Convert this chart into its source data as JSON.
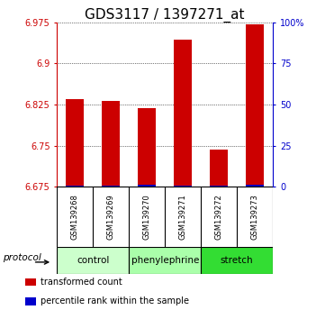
{
  "title": "GDS3117 / 1397271_at",
  "samples": [
    "GSM139268",
    "GSM139269",
    "GSM139270",
    "GSM139271",
    "GSM139272",
    "GSM139273"
  ],
  "red_values": [
    6.835,
    6.832,
    6.818,
    6.943,
    6.742,
    6.972
  ],
  "blue_values": [
    6.677,
    6.677,
    6.678,
    6.677,
    6.677,
    6.678
  ],
  "y_min": 6.675,
  "y_max": 6.975,
  "y_ticks": [
    6.675,
    6.75,
    6.825,
    6.9,
    6.975
  ],
  "y_tick_labels": [
    "6.675",
    "6.75",
    "6.825",
    "6.9",
    "6.975"
  ],
  "right_ticks": [
    0,
    25,
    50,
    75,
    100
  ],
  "right_tick_labels": [
    "0",
    "25",
    "50",
    "75",
    "100%"
  ],
  "groups": [
    {
      "label": "control",
      "start": 0,
      "end": 2,
      "color": "#ccffcc"
    },
    {
      "label": "phenylephrine",
      "start": 2,
      "end": 4,
      "color": "#aaffaa"
    },
    {
      "label": "stretch",
      "start": 4,
      "end": 6,
      "color": "#33dd33"
    }
  ],
  "protocol_label": "protocol",
  "legend_items": [
    {
      "color": "#cc0000",
      "label": "transformed count"
    },
    {
      "color": "#0000cc",
      "label": "percentile rank within the sample"
    }
  ],
  "bar_width": 0.5,
  "left_color": "#cc0000",
  "right_color": "#0000bb",
  "title_fontsize": 11,
  "axis_label_color_left": "#cc0000",
  "axis_label_color_right": "#0000cc",
  "bg_color": "#ffffff",
  "sample_area_bg": "#cccccc",
  "grid_color": "#555555"
}
